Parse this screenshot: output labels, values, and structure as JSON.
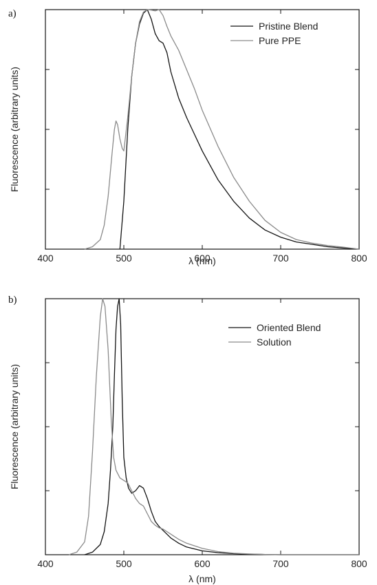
{
  "chart_data": [
    {
      "panel_label": "a)",
      "type": "line",
      "xlabel": "λ (nm)",
      "ylabel": "Fluorescence (arbitrary units)",
      "xlim": [
        400,
        800
      ],
      "ylim": [
        0,
        1.0
      ],
      "x_ticks": [
        400,
        500,
        600,
        700,
        800
      ],
      "y_ticks": [
        0.25,
        0.5,
        0.75
      ],
      "legend_position": "top-right",
      "series": [
        {
          "name": "Pristine Blend",
          "color": "#111111",
          "x": [
            495,
            500,
            505,
            510,
            515,
            520,
            525,
            530,
            535,
            540,
            545,
            550,
            555,
            560,
            570,
            580,
            590,
            600,
            620,
            640,
            660,
            680,
            700,
            720,
            740,
            760,
            780,
            800
          ],
          "y": [
            0,
            0.2,
            0.5,
            0.72,
            0.86,
            0.94,
            0.985,
            1.0,
            0.96,
            0.9,
            0.87,
            0.86,
            0.82,
            0.74,
            0.63,
            0.55,
            0.48,
            0.41,
            0.29,
            0.2,
            0.13,
            0.08,
            0.05,
            0.03,
            0.02,
            0.01,
            0.005,
            0
          ]
        },
        {
          "name": "Pure PPE",
          "color": "#8a8a8a",
          "x": [
            450,
            460,
            470,
            475,
            480,
            485,
            488,
            490,
            492,
            495,
            498,
            500,
            505,
            510,
            515,
            520,
            525,
            530,
            535,
            540,
            545,
            550,
            555,
            560,
            570,
            580,
            590,
            600,
            620,
            640,
            660,
            680,
            700,
            720,
            740,
            760,
            780,
            800
          ],
          "y": [
            0,
            0.01,
            0.04,
            0.1,
            0.22,
            0.4,
            0.5,
            0.535,
            0.52,
            0.46,
            0.42,
            0.41,
            0.55,
            0.72,
            0.86,
            0.95,
            0.99,
            1.0,
            0.998,
            0.995,
            1.0,
            0.975,
            0.93,
            0.89,
            0.83,
            0.75,
            0.67,
            0.58,
            0.43,
            0.3,
            0.2,
            0.12,
            0.07,
            0.04,
            0.025,
            0.015,
            0.008,
            0
          ]
        }
      ]
    },
    {
      "panel_label": "b)",
      "type": "line",
      "xlabel": "λ (nm)",
      "ylabel": "Fluorescence (arbitrary units)",
      "xlim": [
        400,
        800
      ],
      "ylim": [
        0,
        1.0
      ],
      "x_ticks": [
        400,
        500,
        600,
        700,
        800
      ],
      "y_ticks": [
        0.25,
        0.5,
        0.75
      ],
      "legend_position": "top-right",
      "series": [
        {
          "name": "Oriented Blend",
          "color": "#111111",
          "x": [
            450,
            460,
            470,
            475,
            480,
            483,
            486,
            488,
            490,
            492,
            494,
            496,
            498,
            500,
            503,
            506,
            510,
            515,
            520,
            525,
            530,
            535,
            540,
            545,
            550,
            555,
            560,
            570,
            580,
            600,
            620,
            640,
            660,
            680,
            700,
            720,
            740,
            760,
            780,
            800
          ],
          "y": [
            0,
            0.01,
            0.04,
            0.09,
            0.2,
            0.33,
            0.5,
            0.7,
            0.88,
            0.97,
            1.0,
            0.9,
            0.6,
            0.38,
            0.3,
            0.26,
            0.24,
            0.25,
            0.27,
            0.26,
            0.22,
            0.17,
            0.13,
            0.11,
            0.095,
            0.08,
            0.065,
            0.045,
            0.03,
            0.015,
            0.008,
            0.004,
            0.002,
            0.001,
            0,
            0,
            0,
            0,
            0,
            0
          ]
        },
        {
          "name": "Solution",
          "color": "#8a8a8a",
          "x": [
            430,
            440,
            450,
            455,
            460,
            465,
            470,
            473,
            476,
            480,
            484,
            487,
            490,
            495,
            500,
            505,
            510,
            515,
            520,
            525,
            530,
            535,
            540,
            545,
            550,
            555,
            560,
            570,
            580,
            590,
            600,
            620,
            640,
            660,
            680,
            700,
            720,
            740,
            760,
            780,
            800
          ],
          "y": [
            0,
            0.01,
            0.05,
            0.15,
            0.4,
            0.7,
            0.93,
            1.0,
            0.97,
            0.8,
            0.52,
            0.38,
            0.33,
            0.3,
            0.29,
            0.28,
            0.25,
            0.22,
            0.2,
            0.19,
            0.16,
            0.13,
            0.115,
            0.105,
            0.1,
            0.09,
            0.08,
            0.06,
            0.045,
            0.035,
            0.025,
            0.012,
            0.006,
            0.003,
            0.001,
            0,
            0,
            0,
            0,
            0,
            0
          ]
        }
      ]
    }
  ]
}
